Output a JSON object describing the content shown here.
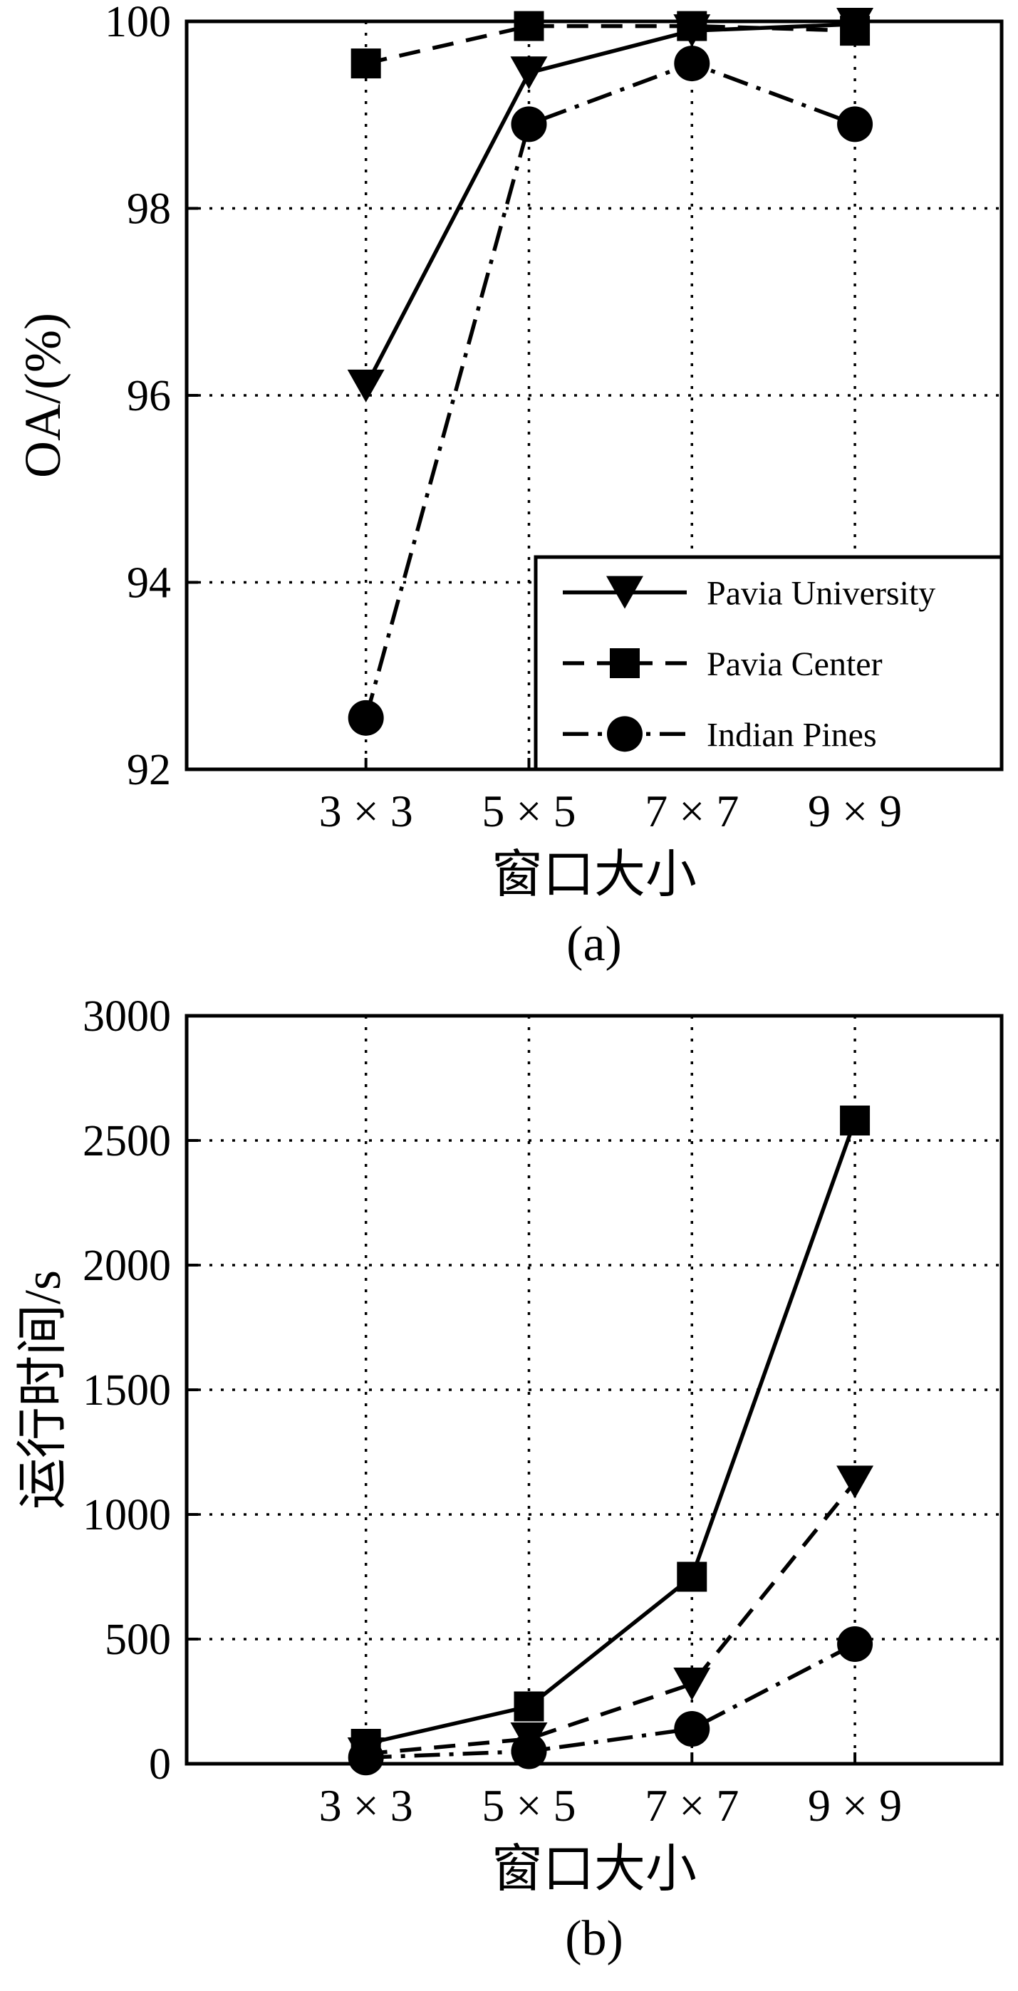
{
  "figure": {
    "background": "#ffffff",
    "ink": "#000000"
  },
  "captions": {
    "a": "(a)",
    "b": "(b)"
  },
  "chart_data": [
    {
      "id": "a",
      "type": "line",
      "title": "",
      "xlabel": "窗口大小",
      "ylabel": "OA/(%)",
      "categories": [
        "3 × 3",
        "5 × 5",
        "7 × 7",
        "9 × 9"
      ],
      "ylim": [
        92,
        100
      ],
      "yticks": [
        92,
        94,
        96,
        98,
        100
      ],
      "grid": "dotted",
      "legend": {
        "show": true,
        "position": "lower-right-inside"
      },
      "series": [
        {
          "name": "Pavia University",
          "marker": "triangle-down",
          "line": "solid",
          "values": [
            96.1,
            99.45,
            99.9,
            99.97
          ]
        },
        {
          "name": "Pavia Center",
          "marker": "square",
          "line": "dashed",
          "values": [
            99.55,
            99.95,
            99.95,
            99.9
          ]
        },
        {
          "name": "Indian Pines",
          "marker": "circle",
          "line": "dashdot",
          "values": [
            92.55,
            98.9,
            99.55,
            98.9
          ]
        }
      ]
    },
    {
      "id": "b",
      "type": "line",
      "title": "",
      "xlabel": "窗口大小",
      "ylabel": "运行时间/s",
      "categories": [
        "3 × 3",
        "5 × 5",
        "7 × 7",
        "9 × 9"
      ],
      "ylim": [
        0,
        3000
      ],
      "yticks": [
        0,
        500,
        1000,
        1500,
        2000,
        2500,
        3000
      ],
      "grid": "dotted",
      "legend": {
        "show": false,
        "position": "none"
      },
      "series": [
        {
          "name": "Pavia Center",
          "marker": "square",
          "line": "solid",
          "values": [
            80,
            230,
            750,
            2580
          ]
        },
        {
          "name": "Pavia University",
          "marker": "triangle-down",
          "line": "dashed",
          "values": [
            40,
            100,
            320,
            1130
          ]
        },
        {
          "name": "Indian Pines",
          "marker": "circle",
          "line": "dashdot",
          "values": [
            25,
            50,
            140,
            480
          ]
        }
      ]
    }
  ]
}
